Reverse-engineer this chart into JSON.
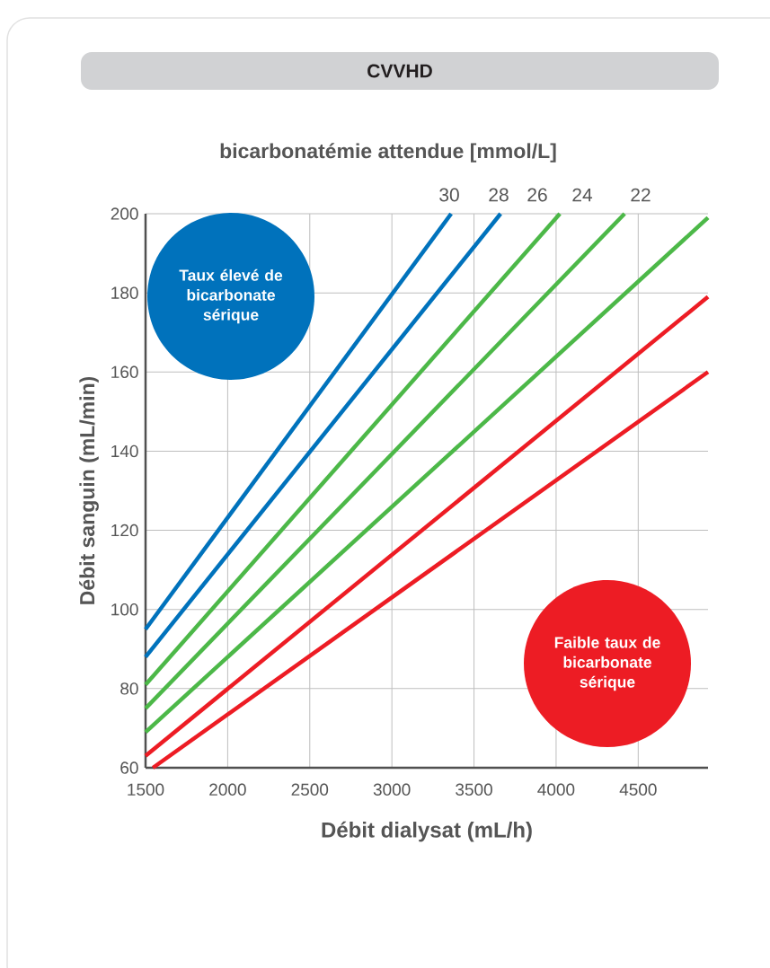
{
  "chart_data": {
    "type": "line",
    "title": "CVVHD",
    "subtitle": "bicarbonatémie attendue [mmol/L]",
    "xlabel": "Débit dialysat (mL/h)",
    "ylabel": "Débit sanguin (mL/min)",
    "xlim": [
      1500,
      4925
    ],
    "ylim": [
      60,
      200
    ],
    "xticks": [
      1500,
      2000,
      2500,
      3000,
      3500,
      4000,
      4500
    ],
    "yticks": [
      60,
      80,
      100,
      120,
      140,
      160,
      180,
      200
    ],
    "grid": true,
    "marker": "none",
    "line_style": "solid",
    "series": [
      {
        "color": "#0072bc",
        "x": [
          1500,
          3361
        ],
        "values": [
          95,
          200
        ]
      },
      {
        "color": "#0072bc",
        "x": [
          1500,
          3662
        ],
        "values": [
          88,
          200
        ]
      },
      {
        "color": "#4cb848",
        "x": [
          1500,
          4023
        ],
        "values": [
          81,
          200
        ]
      },
      {
        "color": "#4cb848",
        "x": [
          1500,
          4417
        ],
        "values": [
          75,
          200
        ]
      },
      {
        "color": "#4cb848",
        "x": [
          1500,
          4925
        ],
        "values": [
          69,
          199
        ]
      },
      {
        "color": "#ed1c24",
        "x": [
          1500,
          4925
        ],
        "values": [
          63,
          179
        ]
      },
      {
        "color": "#ed1c24",
        "x": [
          1545,
          4925
        ],
        "values": [
          60,
          160
        ]
      }
    ],
    "annotations": [
      "30",
      "28",
      "26",
      "24",
      "22",
      "Taux élevé de bicarbonate sérique",
      "Faible taux de bicarbonate sérique"
    ]
  }
}
